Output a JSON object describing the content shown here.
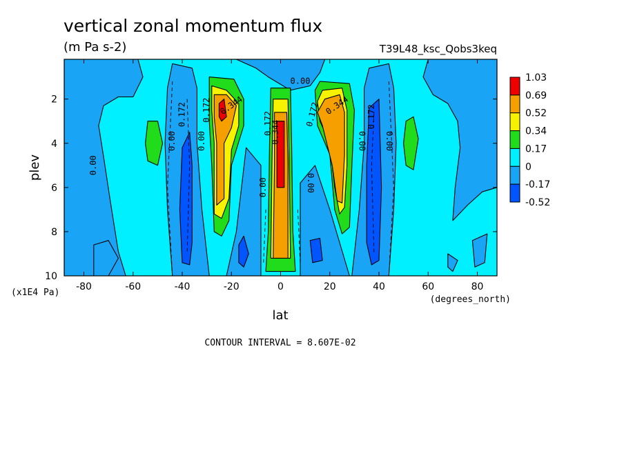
{
  "chart_data": {
    "type": "heatmap",
    "title": "vertical zonal momentum flux",
    "units": "(m Pa s-2)",
    "run_label": "T39L48_ksc_Qobs3keq",
    "xlabel": "lat",
    "xunits": "(degrees_north)",
    "ylabel": "plev",
    "yunits": "(x1E4 Pa)",
    "xlim": [
      -88,
      88
    ],
    "ylim": [
      0.2,
      10
    ],
    "y_inverted": true,
    "xticks": [
      -80,
      -60,
      -40,
      -20,
      0,
      20,
      40,
      60,
      80
    ],
    "yticks": [
      2,
      4,
      6,
      8,
      10
    ],
    "contour_interval_text": "CONTOUR INTERVAL = 8.607E-02",
    "legend_position": "right",
    "colorbar": [
      {
        "label": "1.03",
        "color": "#ee0000"
      },
      {
        "label": "0.69",
        "color": "#f5a000"
      },
      {
        "label": "0.52",
        "color": "#f6f200"
      },
      {
        "label": "0.34",
        "color": "#21dc1a"
      },
      {
        "label": "0.17",
        "color": "#00f0ff"
      },
      {
        "label": "0",
        "color": "#1aa4f6"
      },
      {
        "label": "-0.17",
        "color": "#0055ff"
      },
      {
        "label": "-0.52",
        "color": null
      }
    ],
    "contour_labels": [
      {
        "text": "0.00",
        "lat": 8,
        "plev": 1.2,
        "rotate": 0
      },
      {
        "text": "0.00",
        "lat": -76,
        "plev": 5.0,
        "rotate": -90
      },
      {
        "text": "0.00",
        "lat": -44,
        "plev": 3.9,
        "rotate": -90
      },
      {
        "text": "0.00",
        "lat": -32,
        "plev": 3.9,
        "rotate": -90
      },
      {
        "text": "0.172",
        "lat": -40,
        "plev": 2.7,
        "rotate": -90
      },
      {
        "text": "0.172",
        "lat": -30,
        "plev": 2.5,
        "rotate": -90
      },
      {
        "text": "0.344",
        "lat": -20,
        "plev": 2.3,
        "rotate": -35
      },
      {
        "text": "0.172",
        "lat": -5,
        "plev": 3.1,
        "rotate": -90
      },
      {
        "text": "0.344",
        "lat": -2,
        "plev": 3.5,
        "rotate": -90
      },
      {
        "text": "0.00",
        "lat": -7,
        "plev": 6.0,
        "rotate": -90
      },
      {
        "text": "0.00",
        "lat": 12,
        "plev": 5.8,
        "rotate": 90
      },
      {
        "text": "0.172",
        "lat": 13,
        "plev": 2.7,
        "rotate": -75
      },
      {
        "text": "0.344",
        "lat": 23,
        "plev": 2.3,
        "rotate": -35
      },
      {
        "text": "0.00",
        "lat": 33,
        "plev": 3.9,
        "rotate": 90
      },
      {
        "text": "0.172",
        "lat": 37,
        "plev": 2.8,
        "rotate": -90
      },
      {
        "text": "0.00",
        "lat": 44,
        "plev": 3.9,
        "rotate": 90
      }
    ]
  }
}
